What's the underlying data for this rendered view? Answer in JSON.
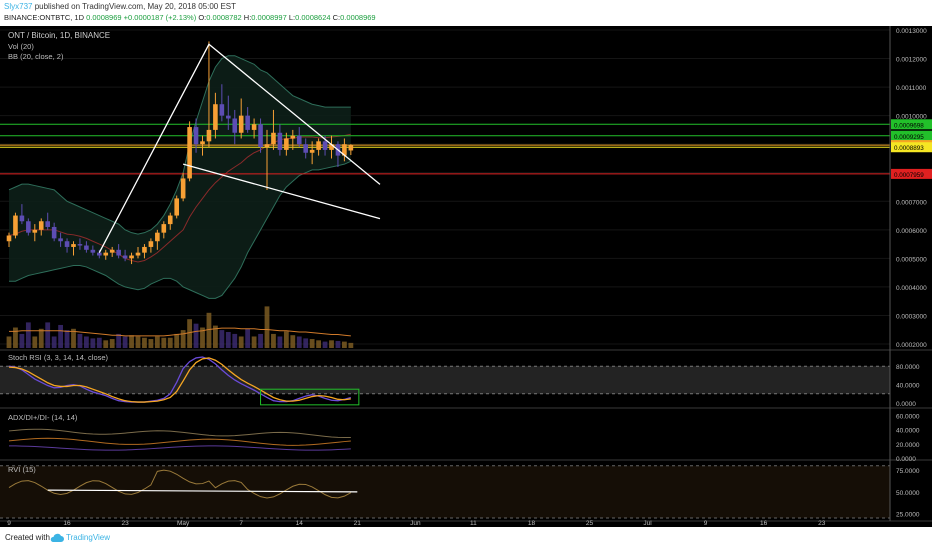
{
  "header": {
    "user": "Slyx737",
    "published": "published on TradingView.com, May 20, 2018 05:00 EST",
    "symbol_line": "BINANCE:ONTBTC, 1D",
    "last": "0.0008969",
    "change": "+0.0000187 (+2.13%)",
    "o_label": "O:",
    "o_value": "0.0008782",
    "h_label": "H:",
    "h_value": "0.0008997",
    "l_label": "L:",
    "l_value": "0.0008624",
    "c_label": "C:",
    "c_value": "0.0008969"
  },
  "legend": {
    "title": "ONT / Bitcoin, 1D, BINANCE",
    "vol": "Vol (20)",
    "bb": "BB (20, close, 2)",
    "stoch": "Stoch RSI (3, 3, 14, 14, close)",
    "adx": "ADX/DI+/DI- (14, 14)",
    "rvi": "RVI (15)"
  },
  "footer": {
    "created": "Created with",
    "brand": "TradingView"
  },
  "colors": {
    "background": "#000000",
    "bull": "#f7a035",
    "bear": "#5d4db3",
    "bb": "#2e6e5a",
    "bb_fill": "#0d1f18",
    "green_level": "#22c02a",
    "orange_level": "#f5a623",
    "red_level": "#e02020",
    "trendline": "#ffffff",
    "stoch_k": "#6a4bd8",
    "stoch_d": "#f5a623"
  },
  "chart_data": [
    {
      "type": "candlestick",
      "title": "ONT / Bitcoin, 1D, BINANCE",
      "y_ticks": [
        "0.0013000",
        "0.0012000",
        "0.0011000",
        "0.0010000",
        "0.0009000",
        "0.0008000",
        "0.0007000",
        "0.0006000",
        "0.0005000",
        "0.0004000",
        "0.0003000",
        "0.0002000"
      ],
      "x_ticks": [
        "9",
        "16",
        "23",
        "May",
        "7",
        "14",
        "21",
        "Jun",
        "11",
        "18",
        "25",
        "Jul",
        "9",
        "16",
        "23"
      ],
      "levels": [
        {
          "value": 0.0009698,
          "label": "0.0009698",
          "color": "#22c02a"
        },
        {
          "value": 0.0009295,
          "label": "0.0009295",
          "color": "#22c02a"
        },
        {
          "value": 0.0008969,
          "label": "0.0008969",
          "color": "#f5a623"
        },
        {
          "value": 0.0008893,
          "label": "0.0008893",
          "color": "#f5e623"
        },
        {
          "value": 0.0007959,
          "label": "0.0007959",
          "color": "#e02020"
        }
      ],
      "candles": [
        [
          0.00056,
          0.00059,
          0.00054,
          0.00058
        ],
        [
          0.00058,
          0.00066,
          0.00057,
          0.00065
        ],
        [
          0.00065,
          0.00069,
          0.00062,
          0.00063
        ],
        [
          0.00063,
          0.00064,
          0.00058,
          0.00059
        ],
        [
          0.00059,
          0.00062,
          0.00056,
          0.0006
        ],
        [
          0.0006,
          0.00064,
          0.00058,
          0.00063
        ],
        [
          0.00063,
          0.00066,
          0.0006,
          0.00061
        ],
        [
          0.00061,
          0.000625,
          0.00056,
          0.00057
        ],
        [
          0.00057,
          0.00059,
          0.00054,
          0.00056
        ],
        [
          0.00056,
          0.00057,
          0.00052,
          0.00054
        ],
        [
          0.00054,
          0.00056,
          0.00051,
          0.00055
        ],
        [
          0.00055,
          0.00057,
          0.00053,
          0.000545
        ],
        [
          0.000545,
          0.00056,
          0.00052,
          0.00053
        ],
        [
          0.00053,
          0.000545,
          0.00051,
          0.00052
        ],
        [
          0.00052,
          0.00053,
          0.0005,
          0.00051
        ],
        [
          0.00051,
          0.00053,
          0.000495,
          0.00052
        ],
        [
          0.00052,
          0.00054,
          0.000505,
          0.00053
        ],
        [
          0.00053,
          0.00055,
          0.0005,
          0.00051
        ],
        [
          0.00051,
          0.00053,
          0.00049,
          0.0005
        ],
        [
          0.0005,
          0.00052,
          0.00048,
          0.00051
        ],
        [
          0.00051,
          0.00054,
          0.0005,
          0.00052
        ],
        [
          0.00052,
          0.00055,
          0.0005,
          0.00054
        ],
        [
          0.00054,
          0.00057,
          0.00052,
          0.00056
        ],
        [
          0.00056,
          0.0006,
          0.00053,
          0.00059
        ],
        [
          0.00059,
          0.00063,
          0.00057,
          0.00062
        ],
        [
          0.00062,
          0.00066,
          0.0006,
          0.00065
        ],
        [
          0.00065,
          0.00072,
          0.00064,
          0.00071
        ],
        [
          0.00071,
          0.0008,
          0.0007,
          0.00078
        ],
        [
          0.00078,
          0.00098,
          0.00077,
          0.00096
        ],
        [
          0.00096,
          0.00099,
          0.00087,
          0.0009
        ],
        [
          0.0009,
          0.00093,
          0.00086,
          0.00091
        ],
        [
          0.00091,
          0.00126,
          0.00089,
          0.00095
        ],
        [
          0.00095,
          0.00108,
          0.00092,
          0.00104
        ],
        [
          0.00104,
          0.00111,
          0.00098,
          0.001
        ],
        [
          0.001,
          0.00107,
          0.00095,
          0.00099
        ],
        [
          0.00099,
          0.00102,
          0.0009,
          0.00094
        ],
        [
          0.00094,
          0.00106,
          0.00092,
          0.001
        ],
        [
          0.001,
          0.00103,
          0.00094,
          0.00095
        ],
        [
          0.00095,
          0.00099,
          0.00092,
          0.00097
        ],
        [
          0.00097,
          0.00099,
          0.00087,
          0.00089
        ],
        [
          0.00089,
          0.00095,
          0.00074,
          0.0009
        ],
        [
          0.0009,
          0.00102,
          0.00088,
          0.00094
        ],
        [
          0.00094,
          0.00097,
          0.00086,
          0.00088
        ],
        [
          0.00088,
          0.00094,
          0.00086,
          0.00092
        ],
        [
          0.00092,
          0.00095,
          0.00088,
          0.00093
        ],
        [
          0.00093,
          0.00096,
          0.00089,
          0.0009
        ],
        [
          0.0009,
          0.00092,
          0.00085,
          0.00087
        ],
        [
          0.00087,
          0.00091,
          0.00083,
          0.00088
        ],
        [
          0.00088,
          0.00092,
          0.00086,
          0.00091
        ],
        [
          0.00091,
          0.00093,
          0.00086,
          0.00088
        ],
        [
          0.00088,
          0.00093,
          0.00085,
          0.0009
        ],
        [
          0.0009,
          0.00091,
          0.00082,
          0.00086
        ],
        [
          0.00086,
          0.00092,
          0.00084,
          0.0009
        ],
        [
          0.000878,
          0.0009,
          0.000862,
          0.000897
        ]
      ],
      "volume": [
        0.18,
        0.32,
        0.22,
        0.4,
        0.18,
        0.3,
        0.4,
        0.18,
        0.36,
        0.28,
        0.3,
        0.22,
        0.18,
        0.15,
        0.16,
        0.12,
        0.14,
        0.22,
        0.18,
        0.2,
        0.18,
        0.16,
        0.14,
        0.18,
        0.16,
        0.16,
        0.22,
        0.28,
        0.45,
        0.38,
        0.32,
        0.55,
        0.35,
        0.28,
        0.25,
        0.22,
        0.18,
        0.3,
        0.18,
        0.22,
        0.65,
        0.22,
        0.18,
        0.26,
        0.2,
        0.18,
        0.15,
        0.14,
        0.12,
        0.1,
        0.12,
        0.11,
        0.1,
        0.08
      ],
      "bb_upper": [
        0.00074,
        0.00075,
        0.00076,
        0.00076,
        0.000755,
        0.00075,
        0.000745,
        0.00074,
        0.00072,
        0.0007,
        0.00069,
        0.00068,
        0.00067,
        0.00066,
        0.00065,
        0.00064,
        0.00063,
        0.00062,
        0.0006,
        0.00059,
        0.000585,
        0.00059,
        0.0006,
        0.00062,
        0.00065,
        0.00069,
        0.00074,
        0.0008,
        0.0009,
        0.00098,
        0.00105,
        0.00112,
        0.00117,
        0.0012,
        0.00121,
        0.00121,
        0.0012,
        0.00119,
        0.00118,
        0.00116,
        0.00115,
        0.00113,
        0.00111,
        0.00109,
        0.00107,
        0.00106,
        0.00105,
        0.00104,
        0.001035,
        0.00103,
        0.00103,
        0.00103,
        0.00103,
        0.00103
      ],
      "bb_lower": [
        0.00042,
        0.00042,
        0.00043,
        0.00044,
        0.000445,
        0.00045,
        0.000455,
        0.00046,
        0.000465,
        0.00047,
        0.000475,
        0.000475,
        0.00047,
        0.00046,
        0.00045,
        0.00044,
        0.000425,
        0.00041,
        0.0004,
        0.000395,
        0.00039,
        0.000395,
        0.00041,
        0.00042,
        0.00043,
        0.00043,
        0.00042,
        0.0004,
        0.00039,
        0.00038,
        0.00037,
        0.00036,
        0.00036,
        0.00037,
        0.0004,
        0.00043,
        0.00047,
        0.00052,
        0.00056,
        0.0006,
        0.00064,
        0.00068,
        0.00072,
        0.00075,
        0.00077,
        0.00079,
        0.0008,
        0.00081,
        0.00081,
        0.000815,
        0.00082,
        0.000825,
        0.00083,
        0.00084
      ],
      "volume_ma": [
        0.26,
        0.26,
        0.27,
        0.27,
        0.27,
        0.27,
        0.27,
        0.27,
        0.27,
        0.26,
        0.26,
        0.25,
        0.24,
        0.23,
        0.22,
        0.21,
        0.2,
        0.2,
        0.19,
        0.19,
        0.19,
        0.19,
        0.19,
        0.19,
        0.19,
        0.2,
        0.21,
        0.22,
        0.24,
        0.26,
        0.27,
        0.29,
        0.3,
        0.31,
        0.31,
        0.31,
        0.3,
        0.3,
        0.3,
        0.29,
        0.29,
        0.28,
        0.27,
        0.27,
        0.26,
        0.25,
        0.25,
        0.24,
        0.23,
        0.22,
        0.21,
        0.21,
        0.2,
        0.19
      ],
      "trendlines": [
        [
          [
            14,
            0.00052
          ],
          [
            31,
            0.00125
          ],
          [
            51,
            0.00088
          ]
        ],
        [
          [
            27,
            0.00083
          ],
          [
            51,
            0.00068
          ]
        ]
      ]
    },
    {
      "type": "line",
      "title": "Stoch RSI (3, 3, 14, 14, close)",
      "y_ticks": [
        "80.0000",
        "40.0000",
        "0.0000"
      ],
      "ylim": [
        0,
        100
      ],
      "series": [
        {
          "name": "K",
          "values": [
            80,
            78,
            72,
            62,
            52,
            45,
            38,
            33,
            34,
            38,
            40,
            37,
            30,
            24,
            20,
            16,
            10,
            5,
            3,
            2,
            2,
            2,
            4,
            6,
            10,
            20,
            45,
            75,
            90,
            98,
            100,
            95,
            85,
            72,
            60,
            50,
            42,
            35,
            28,
            20,
            12,
            5,
            3,
            3,
            5,
            10,
            15,
            18,
            15,
            10,
            6,
            5,
            8,
            12
          ]
        },
        {
          "name": "D",
          "values": [
            78,
            77,
            74,
            68,
            60,
            52,
            44,
            38,
            36,
            36,
            38,
            38,
            35,
            30,
            25,
            20,
            14,
            9,
            5,
            3,
            2,
            2,
            3,
            4,
            7,
            12,
            25,
            48,
            72,
            88,
            96,
            98,
            93,
            84,
            72,
            61,
            51,
            43,
            36,
            28,
            20,
            12,
            7,
            4,
            4,
            6,
            10,
            14,
            16,
            15,
            12,
            8,
            7,
            9
          ]
        }
      ]
    },
    {
      "type": "line",
      "title": "ADX/DI+/DI- (14, 14)",
      "y_ticks": [
        "60.0000",
        "40.0000",
        "20.0000",
        "0.0000"
      ],
      "ylim": [
        0,
        66
      ]
    },
    {
      "type": "line",
      "title": "RVI (15)",
      "y_ticks": [
        "75.0000",
        "50.0000",
        "25.0000"
      ],
      "ylim": [
        20,
        82
      ]
    }
  ]
}
